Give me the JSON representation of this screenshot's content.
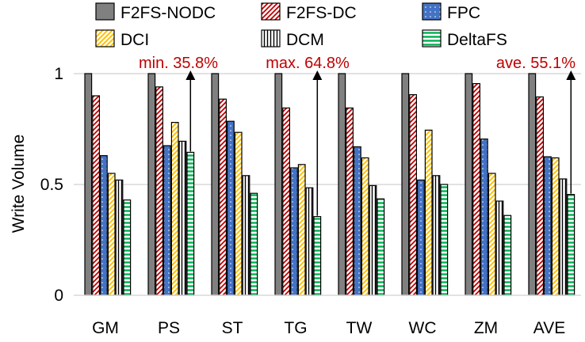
{
  "chart_data": {
    "type": "bar",
    "ylabel": "Write Volume",
    "xlabel": "",
    "ylim": [
      0,
      1
    ],
    "yticks": [
      0,
      0.5,
      1
    ],
    "ytick_labels": [
      "0",
      "0.5",
      "1"
    ],
    "grid": true,
    "legend_position": "top",
    "categories": [
      "GM",
      "PS",
      "ST",
      "TG",
      "TW",
      "WC",
      "ZM",
      "AVE"
    ],
    "series": [
      {
        "name": "F2FS-NODC",
        "values": [
          1,
          1,
          1,
          1,
          1,
          1,
          1,
          1
        ]
      },
      {
        "name": "F2FS-DC",
        "values": [
          0.9,
          0.94,
          0.885,
          0.845,
          0.845,
          0.905,
          0.955,
          0.895
        ]
      },
      {
        "name": "FPC",
        "values": [
          0.63,
          0.675,
          0.785,
          0.575,
          0.67,
          0.52,
          0.705,
          0.625
        ]
      },
      {
        "name": "DCI",
        "values": [
          0.55,
          0.78,
          0.735,
          0.59,
          0.62,
          0.745,
          0.55,
          0.62
        ]
      },
      {
        "name": "DCM",
        "values": [
          0.52,
          0.695,
          0.54,
          0.485,
          0.495,
          0.54,
          0.425,
          0.525
        ]
      },
      {
        "name": "DeltaFS",
        "values": [
          0.43,
          0.645,
          0.46,
          0.355,
          0.435,
          0.5,
          0.36,
          0.455
        ]
      }
    ],
    "annotations": [
      {
        "text": "min. 35.8%",
        "category": "PS"
      },
      {
        "text": "max. 64.8%",
        "category": "TG"
      },
      {
        "text": "ave. 55.1%",
        "category": "AVE"
      }
    ]
  },
  "colors": {
    "F2FS-NODC": "#808080",
    "F2FS-DC": "#c00000",
    "FPC": "#4472c4",
    "DCI": "#ffc000",
    "DCM": "#000000",
    "DeltaFS": "#00b050",
    "annotation": "#c00000",
    "grid": "#d9d9d9"
  }
}
